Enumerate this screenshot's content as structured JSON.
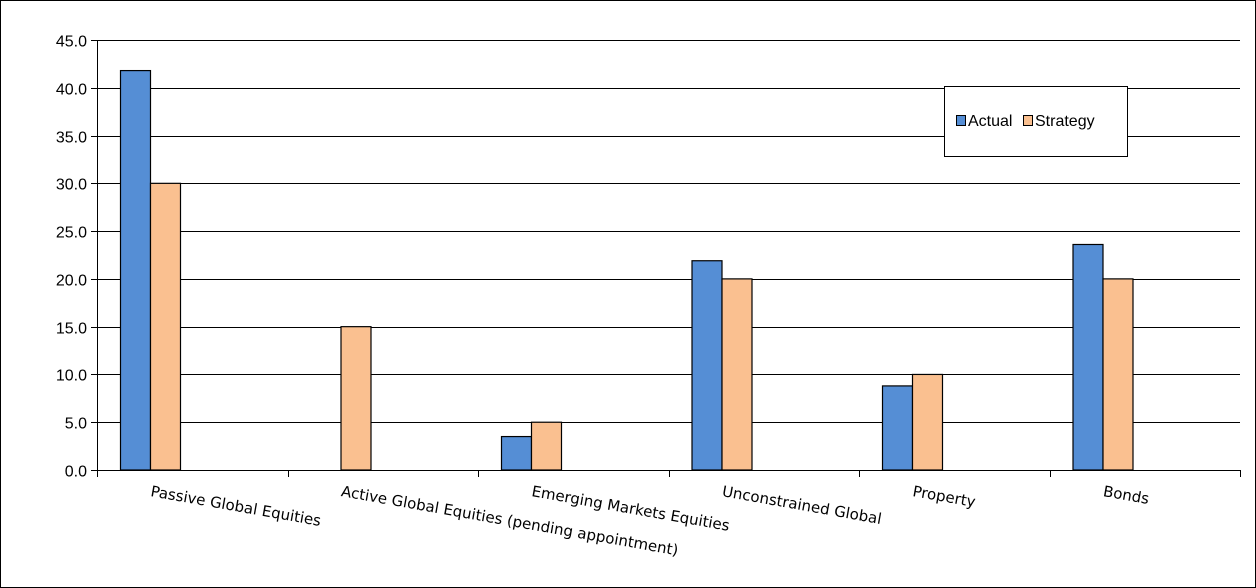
{
  "chart_data": {
    "type": "bar",
    "title": "",
    "xlabel": "",
    "ylabel": "",
    "ylim": [
      0,
      45
    ],
    "yticks": [
      "0.0",
      "5.0",
      "10.0",
      "15.0",
      "20.0",
      "25.0",
      "30.0",
      "35.0",
      "40.0",
      "45.0"
    ],
    "grid": true,
    "legend_position": "top-right",
    "categories": [
      "Passive Global Equities",
      "Active Global Equities (pending appointment)",
      "Emerging Markets Equities",
      "Unconstrained Global",
      "Property",
      "Bonds"
    ],
    "series": [
      {
        "name": "Actual",
        "color": "#558ed5",
        "values": [
          41.8,
          0,
          3.5,
          21.9,
          8.8,
          23.6
        ]
      },
      {
        "name": "Strategy",
        "color": "#fac090",
        "values": [
          30.0,
          15.0,
          5.0,
          20.0,
          10.0,
          20.0
        ]
      }
    ]
  }
}
